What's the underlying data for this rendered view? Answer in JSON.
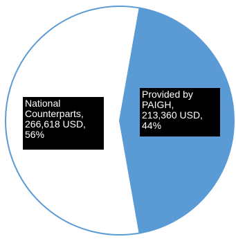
{
  "chart_data": {
    "type": "pie",
    "slices": [
      {
        "label": "Provided by PAIGH",
        "value_text": "213,360 USD",
        "value": 213360,
        "percent_text": "44%",
        "percent": 44,
        "color": "#5b9bd5"
      },
      {
        "label": "National Counterparts",
        "value_text": "266,618 USD",
        "value": 266618,
        "percent_text": "56%",
        "percent": 56,
        "color": "#ffffff"
      }
    ],
    "border_color": "#5b9bd5",
    "label_style": "black-box-white-text"
  }
}
